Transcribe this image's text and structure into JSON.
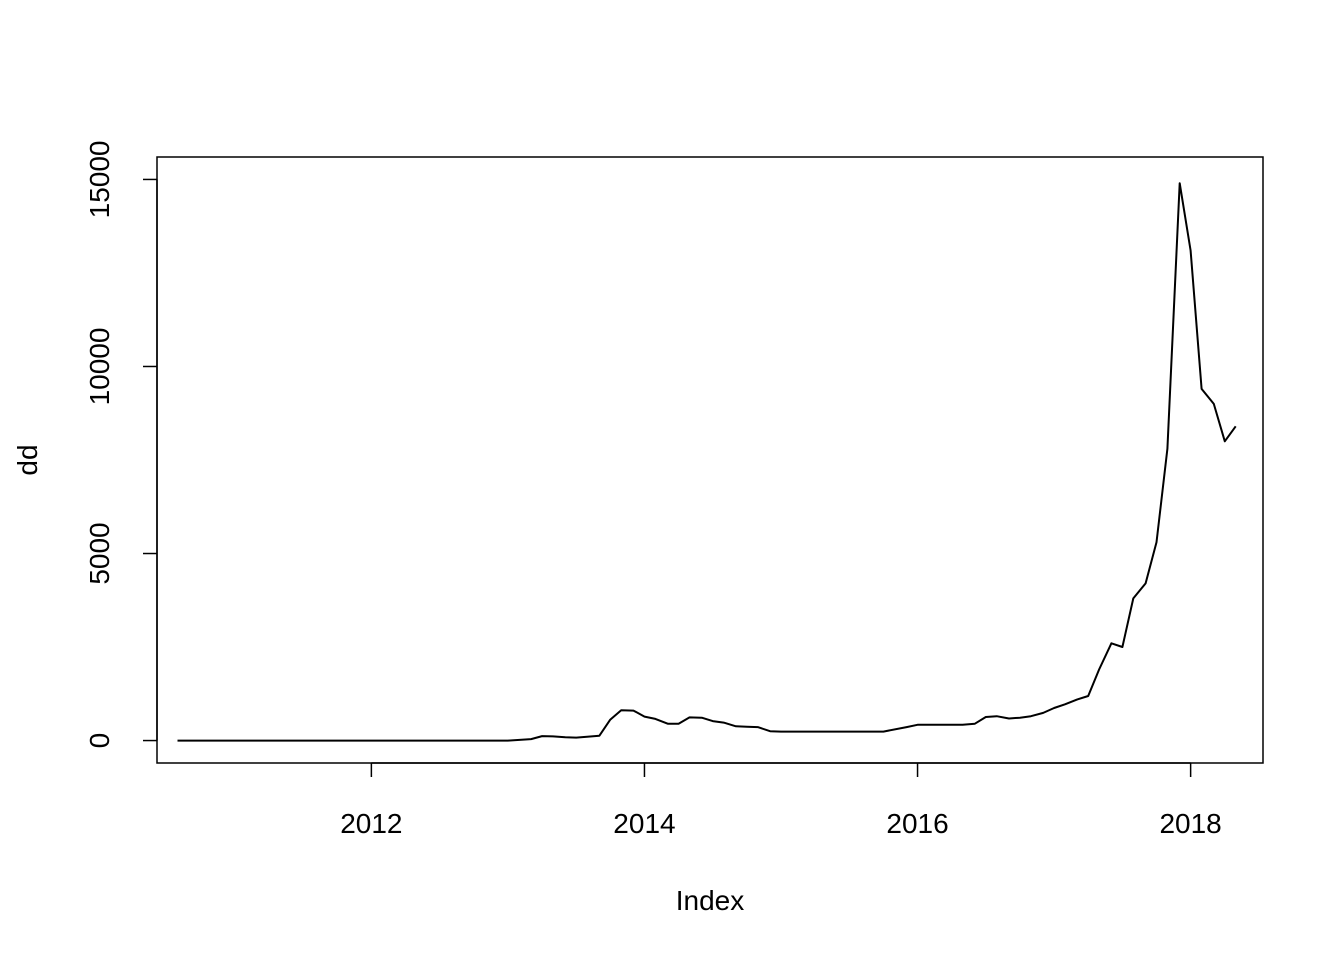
{
  "chart_data": {
    "type": "line",
    "title": "",
    "xlabel": "Index",
    "ylabel": "dd",
    "xlim": [
      2010.43,
      2018.53
    ],
    "ylim": [
      -600,
      15600
    ],
    "x_ticks": [
      2012,
      2014,
      2016,
      2018
    ],
    "y_ticks": [
      0,
      5000,
      10000,
      15000
    ],
    "grid": false,
    "legend": "none",
    "series": [
      {
        "x": [
          2010.58,
          2011.0,
          2011.5,
          2012.0,
          2012.5,
          2013.0,
          2013.17,
          2013.25,
          2013.33,
          2013.42,
          2013.5,
          2013.58,
          2013.67,
          2013.75,
          2013.83,
          2013.92,
          2014.0,
          2014.08,
          2014.17,
          2014.25,
          2014.33,
          2014.42,
          2014.5,
          2014.58,
          2014.67,
          2014.75,
          2014.83,
          2014.92,
          2015.0,
          2015.08,
          2015.5,
          2015.75,
          2015.92,
          2016.0,
          2016.17,
          2016.33,
          2016.42,
          2016.5,
          2016.58,
          2016.67,
          2016.75,
          2016.83,
          2016.92,
          2017.0,
          2017.08,
          2017.17,
          2017.25,
          2017.33,
          2017.42,
          2017.5,
          2017.58,
          2017.67,
          2017.75,
          2017.83,
          2017.92,
          2018.0,
          2018.08,
          2018.17,
          2018.25,
          2018.33
        ],
        "y": [
          0,
          0,
          0,
          0,
          0,
          0,
          40,
          120,
          110,
          90,
          80,
          100,
          130,
          560,
          810,
          800,
          640,
          580,
          450,
          450,
          620,
          610,
          520,
          480,
          380,
          370,
          360,
          250,
          240,
          240,
          240,
          240,
          360,
          420,
          420,
          420,
          450,
          630,
          650,
          590,
          610,
          650,
          740,
          870,
          970,
          1100,
          1190,
          1900,
          2600,
          2500,
          3800,
          4200,
          5300,
          7800,
          14900,
          13100,
          9400,
          9000,
          8000,
          8400
        ]
      }
    ]
  }
}
